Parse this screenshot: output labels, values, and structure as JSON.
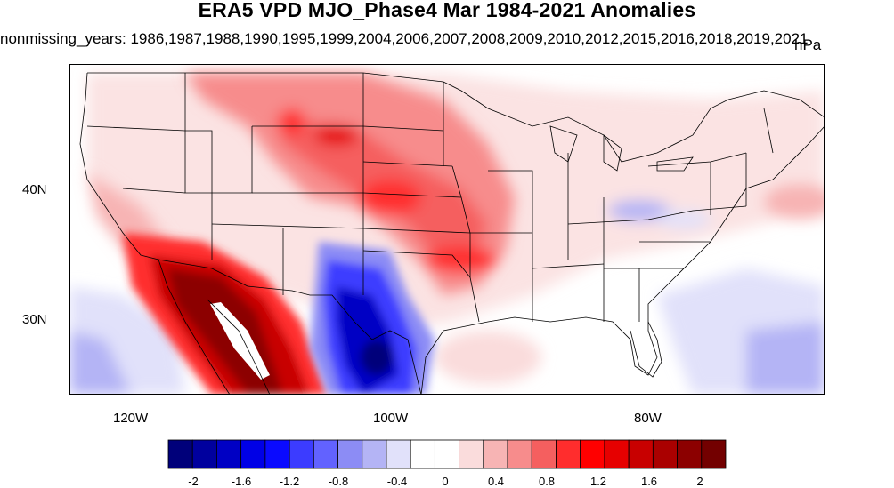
{
  "title": "ERA5 VPD MJO_Phase4 Mar 1984-2021 Anomalies",
  "subtitle": "nonmissing_years: 1986,1987,1988,1990,1995,1999,2004,2006,2007,2008,2009,2010,2012,2015,2016,2018,2019,2021",
  "units": "hPa",
  "map": {
    "region": "Continental United States",
    "lon_labels": [
      "120W",
      "100W",
      "80W"
    ],
    "lat_labels": [
      "40N",
      "30N"
    ],
    "colorbar": {
      "levels": [
        "-2",
        "-1.6",
        "-1.2",
        "-0.8",
        "-0.4",
        "0",
        "0.4",
        "0.8",
        "1.2",
        "1.6",
        "2"
      ],
      "colors": [
        "#00007a",
        "#00009e",
        "#0000c4",
        "#0000e6",
        "#0a0aff",
        "#3c3cff",
        "#6262ff",
        "#8c8cf5",
        "#b4b4f5",
        "#e1e1fa",
        "#ffffff",
        "#ffffff",
        "#fadcdc",
        "#f7b4b4",
        "#f78c8c",
        "#f55f5f",
        "#ff2d2d",
        "#ff0000",
        "#e60000",
        "#c80000",
        "#aa0000",
        "#8c0000",
        "#730000"
      ]
    }
  }
}
